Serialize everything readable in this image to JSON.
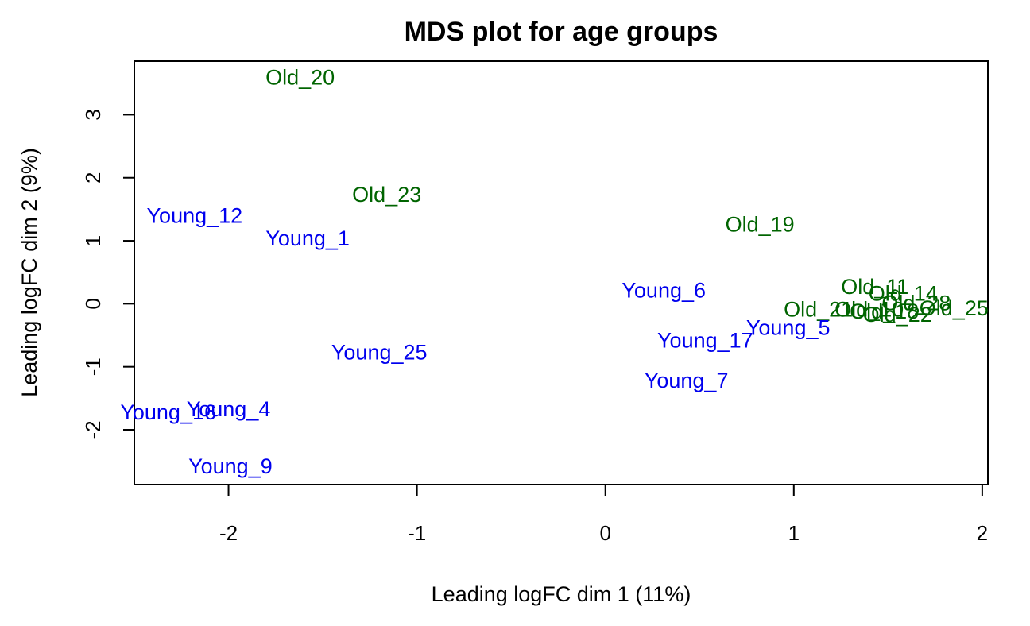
{
  "chart_data": {
    "type": "scatter",
    "title": "MDS plot for age groups",
    "xlabel": "Leading logFC dim 1 (11%)",
    "ylabel": "Leading logFC dim 2 (9%)",
    "xlim": [
      -2.5,
      2.03
    ],
    "ylim": [
      -2.87,
      3.85
    ],
    "xticks": [
      -2,
      -1,
      0,
      1,
      2
    ],
    "yticks": [
      -2,
      -1,
      0,
      1,
      2,
      3
    ],
    "grid": false,
    "colors": {
      "Young": "#0000ee",
      "Old": "#006400"
    },
    "points": [
      {
        "label": "Old_20",
        "group": "Old",
        "x": -1.62,
        "y": 3.59
      },
      {
        "label": "Old_23",
        "group": "Old",
        "x": -1.16,
        "y": 1.73
      },
      {
        "label": "Old_19",
        "group": "Old",
        "x": 0.82,
        "y": 1.26
      },
      {
        "label": "Old_11",
        "group": "Old",
        "x": 1.43,
        "y": 0.27
      },
      {
        "label": "Old_14",
        "group": "Old",
        "x": 1.58,
        "y": 0.16
      },
      {
        "label": "Old_28",
        "group": "Old",
        "x": 1.65,
        "y": 0.01
      },
      {
        "label": "Old_25",
        "group": "Old",
        "x": 1.85,
        "y": -0.07
      },
      {
        "label": "Old_21",
        "group": "Old",
        "x": 1.13,
        "y": -0.09
      },
      {
        "label": "Old_10",
        "group": "Old",
        "x": 1.4,
        "y": -0.09
      },
      {
        "label": "Old_18",
        "group": "Old",
        "x": 1.48,
        "y": -0.12
      },
      {
        "label": "Old_22",
        "group": "Old",
        "x": 1.55,
        "y": -0.17
      },
      {
        "label": "Young_12",
        "group": "Young",
        "x": -2.18,
        "y": 1.4
      },
      {
        "label": "Young_1",
        "group": "Young",
        "x": -1.58,
        "y": 1.04
      },
      {
        "label": "Young_6",
        "group": "Young",
        "x": 0.31,
        "y": 0.21
      },
      {
        "label": "Young_5",
        "group": "Young",
        "x": 0.97,
        "y": -0.38
      },
      {
        "label": "Young_17",
        "group": "Young",
        "x": 0.53,
        "y": -0.58
      },
      {
        "label": "Young_25",
        "group": "Young",
        "x": -1.2,
        "y": -0.77
      },
      {
        "label": "Young_7",
        "group": "Young",
        "x": 0.43,
        "y": -1.22
      },
      {
        "label": "Young_16",
        "group": "Young",
        "x": -2.32,
        "y": -1.72
      },
      {
        "label": "Young_4",
        "group": "Young",
        "x": -2.0,
        "y": -1.67
      },
      {
        "label": "Young_9",
        "group": "Young",
        "x": -1.99,
        "y": -2.58
      }
    ]
  }
}
